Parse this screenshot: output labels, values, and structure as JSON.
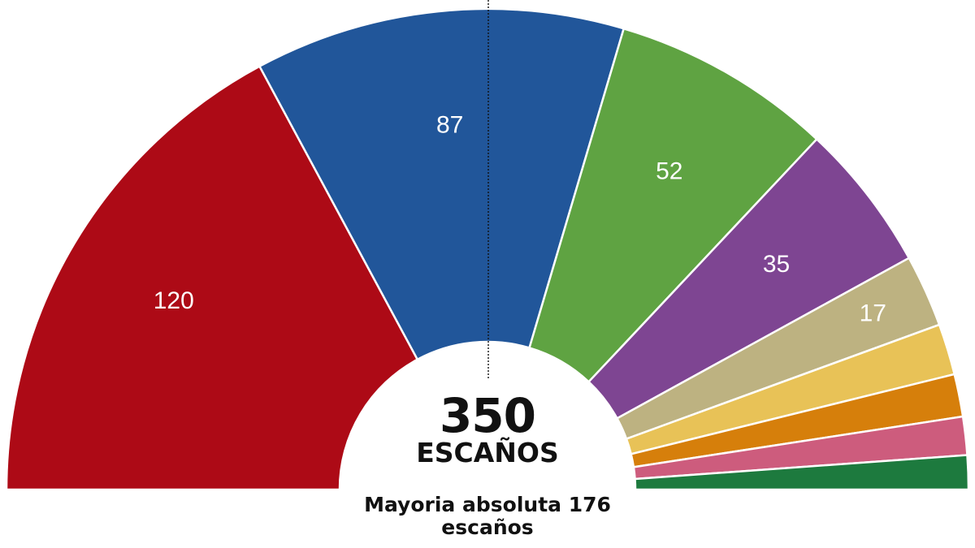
{
  "chart_data": {
    "type": "pie",
    "subtype": "parliament-semicircle",
    "total_seats": 350,
    "total_label": "ESCAÑOS",
    "majority_line1": "Mayoria absoluta 176",
    "majority_line2": "escaños",
    "majority_seats": 176,
    "series": [
      {
        "value": 120,
        "label": "120",
        "color": "#ad0a16"
      },
      {
        "value": 87,
        "label": "87",
        "color": "#21569a"
      },
      {
        "value": 52,
        "label": "52",
        "color": "#5fa342"
      },
      {
        "value": 35,
        "label": "35",
        "color": "#7e4592"
      },
      {
        "value": 17,
        "label": "17",
        "color": "#bdb281"
      },
      {
        "value": 12,
        "label": "",
        "color": "#e8c257"
      },
      {
        "value": 10,
        "label": "",
        "color": "#d67f0b"
      },
      {
        "value": 9,
        "label": "",
        "color": "#cd5c7d"
      },
      {
        "value": 8,
        "label": "",
        "color": "#1d7a3e"
      }
    ]
  }
}
